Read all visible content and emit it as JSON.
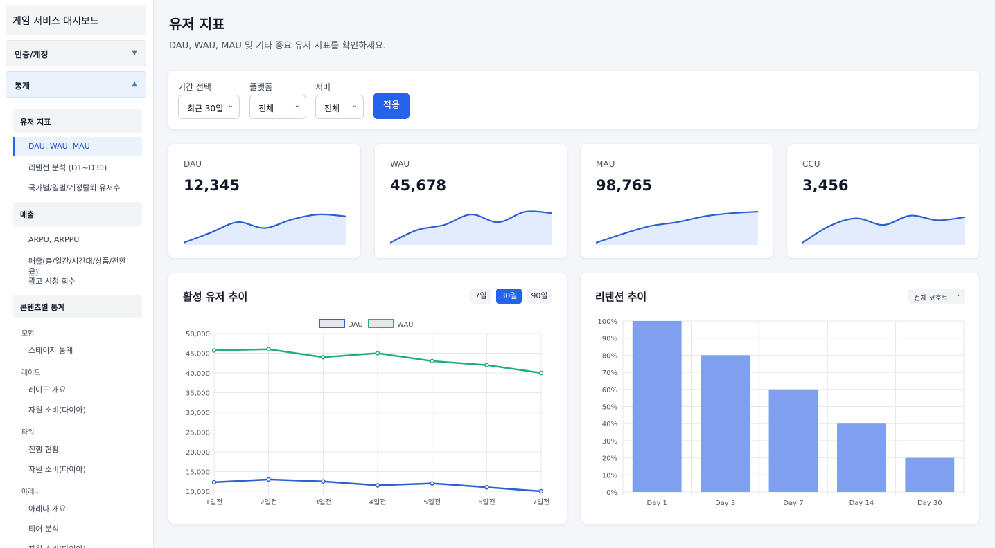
{
  "sidebar": {
    "brand": "게임 서비스 대시보드",
    "accordions": [
      {
        "label": "인증/계정",
        "caret": "▼"
      },
      {
        "label": "통계",
        "caret": "▲"
      }
    ],
    "groups": {
      "user": "유저 지표",
      "revenue": "매출",
      "content": "콘텐츠별 통계"
    },
    "user_items": [
      "DAU, WAU, MAU",
      "리텐션 분석 (D1~D30)",
      "국가별/일별/계정탈퇴 유저수"
    ],
    "revenue_items": [
      "ARPU, ARPPU",
      "매출(총/일간/시간대/상품/전환율)",
      "광고 시청 회수"
    ],
    "sections": {
      "adventure": "모험",
      "adventure_items": [
        "스테이지 통계"
      ],
      "raid": "레이드",
      "raid_items": [
        "레이드 개요",
        "자원 소비(다이아)"
      ],
      "tower": "타워",
      "tower_items": [
        "진행 현황",
        "자원 소비(다이아)"
      ],
      "arena": "아레나",
      "arena_items": [
        "아레나 개요",
        "티어 분석",
        "자원 소비(다이아)"
      ]
    }
  },
  "header": {
    "title": "유저 지표",
    "subtitle": "DAU, WAU, MAU 및 기타 중요 유저 지표를 확인하세요."
  },
  "filters": {
    "period_label": "기간 선택",
    "period_value": "최근 30일",
    "platform_label": "플랫폼",
    "platform_value": "전체",
    "server_label": "서버",
    "server_value": "전체",
    "apply_label": "적용"
  },
  "stats": [
    {
      "label": "DAU",
      "value": "12,345",
      "trend": [
        2,
        28,
        55,
        40,
        62,
        75,
        70
      ]
    },
    {
      "label": "WAU",
      "value": "45,678",
      "trend": [
        2,
        35,
        48,
        75,
        55,
        82,
        78
      ]
    },
    {
      "label": "MAU",
      "value": "98,765",
      "trend": [
        2,
        25,
        45,
        55,
        70,
        78,
        82
      ]
    },
    {
      "label": "CCU",
      "value": "3,456",
      "trend": [
        2,
        45,
        65,
        48,
        72,
        60,
        68
      ]
    }
  ],
  "trend_chart": {
    "title": "활성 유저 추이",
    "ranges": [
      "7일",
      "30일",
      "90일"
    ],
    "active_range": "30일",
    "colors": {
      "dau": "#2c5fcf",
      "wau": "#1fad7c",
      "grid": "#e5e7eb"
    }
  },
  "retention_chart": {
    "title": "리텐션 추이",
    "cohort": "전체 코호트",
    "bar_color": "#7f9fef"
  },
  "chart_data": [
    {
      "type": "line",
      "x": [
        "1일전",
        "2일전",
        "3일전",
        "4일전",
        "5일전",
        "6일전",
        "7일전"
      ],
      "series": [
        {
          "name": "DAU",
          "values": [
            12300,
            13000,
            12500,
            11500,
            12000,
            11000,
            10000
          ]
        },
        {
          "name": "WAU",
          "values": [
            45700,
            46000,
            44000,
            45000,
            43000,
            42000,
            40000
          ]
        }
      ],
      "ylim": [
        10000,
        50000
      ],
      "yticks": [
        "50,000",
        "45,000",
        "40,000",
        "35,000",
        "30,000",
        "25,000",
        "20,000",
        "15,000",
        "10,000"
      ],
      "grid": true,
      "legend": "top"
    },
    {
      "type": "bar",
      "categories": [
        "Day 1",
        "Day 3",
        "Day 7",
        "Day 14",
        "Day 30"
      ],
      "values": [
        100,
        80,
        60,
        40,
        20
      ],
      "ylim": [
        0,
        100
      ],
      "yticks": [
        "100%",
        "90%",
        "80%",
        "70%",
        "60%",
        "50%",
        "40%",
        "30%",
        "20%",
        "10%",
        "0%"
      ],
      "grid": true
    }
  ]
}
